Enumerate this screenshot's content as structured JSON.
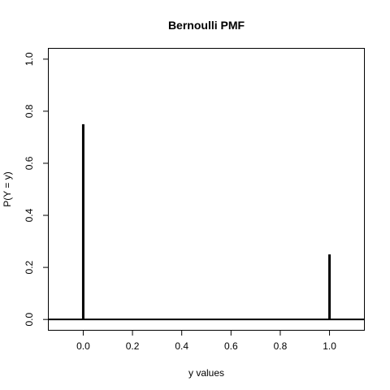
{
  "chart_data": {
    "type": "bar",
    "title": "Bernoulli PMF",
    "xlabel": "y values",
    "ylabel": "P(Y = y)",
    "x": [
      0,
      1
    ],
    "values": [
      0.75,
      0.25
    ],
    "xlim": [
      -0.14,
      1.14
    ],
    "ylim": [
      -0.04,
      1.04
    ],
    "xticks": [
      0,
      0.2,
      0.4,
      0.6,
      0.8,
      1
    ],
    "xtick_labels": [
      "0.0",
      "0.2",
      "0.4",
      "0.6",
      "0.8",
      "1.0"
    ],
    "yticks": [
      0,
      0.2,
      0.4,
      0.6,
      0.8,
      1
    ],
    "ytick_labels": [
      "0.0",
      "0.2",
      "0.4",
      "0.6",
      "0.8",
      "1.0"
    ],
    "hline": 0,
    "grid": false,
    "mark_color": "#000000"
  }
}
